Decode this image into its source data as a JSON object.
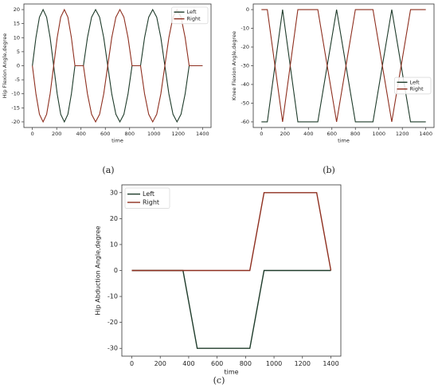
{
  "chart_data": [
    {
      "type": "line",
      "label": "(a)",
      "xlabel": "time",
      "ylabel": "Hip Flexion Angle,degree",
      "x": [
        0,
        29,
        58,
        88,
        117,
        146,
        175,
        204,
        233,
        263,
        292,
        321,
        350,
        420,
        453,
        487,
        520,
        553,
        587,
        620,
        653,
        687,
        720,
        753,
        787,
        820,
        890,
        923,
        957,
        990,
        1023,
        1057,
        1090,
        1123,
        1157,
        1190,
        1223,
        1257,
        1290,
        1400
      ],
      "series": [
        {
          "name": "Left",
          "color": "#1e3b2a",
          "values": [
            0,
            10,
            17.3,
            20,
            17.3,
            10,
            0,
            -10,
            -17.3,
            -20,
            -17.3,
            -10,
            0,
            0,
            10,
            17.3,
            20,
            17.3,
            10,
            0,
            -10,
            -17.3,
            -20,
            -17.3,
            -10,
            0,
            0,
            10,
            17.3,
            20,
            17.3,
            10,
            0,
            -10,
            -17.3,
            -20,
            -17.3,
            -10,
            0,
            0
          ]
        },
        {
          "name": "Right",
          "color": "#8e2f1f",
          "values": [
            0,
            -10,
            -17.3,
            -20,
            -17.3,
            -10,
            0,
            10,
            17.3,
            20,
            17.3,
            10,
            0,
            0,
            -10,
            -17.3,
            -20,
            -17.3,
            -10,
            0,
            10,
            17.3,
            20,
            17.3,
            10,
            0,
            0,
            -10,
            -17.3,
            -20,
            -17.3,
            -10,
            0,
            10,
            17.3,
            20,
            17.3,
            10,
            0,
            0
          ]
        }
      ],
      "xlim": [
        -70,
        1470
      ],
      "xticks": [
        0,
        200,
        400,
        600,
        800,
        1000,
        1200,
        1400
      ],
      "ylim": [
        -22,
        22
      ],
      "yticks": [
        -20,
        -15,
        -10,
        -5,
        0,
        5,
        10,
        15,
        20
      ],
      "legend": "upper right"
    },
    {
      "type": "line",
      "label": "(b)",
      "xlabel": "time",
      "ylabel": "Knee Flexion Angle,degree",
      "x": [
        0,
        50,
        115,
        180,
        245,
        310,
        480,
        560,
        640,
        720,
        800,
        950,
        1030,
        1110,
        1190,
        1270,
        1400
      ],
      "series": [
        {
          "name": "Left",
          "color": "#1e3b2a",
          "values": [
            -60,
            -60,
            -30,
            0,
            -30,
            -60,
            -60,
            -30,
            0,
            -30,
            -60,
            -60,
            -30,
            0,
            -30,
            -60,
            -60
          ]
        },
        {
          "name": "Right",
          "color": "#8e2f1f",
          "values": [
            0,
            0,
            -30,
            -60,
            -30,
            0,
            0,
            -30,
            -60,
            -30,
            0,
            0,
            -30,
            -60,
            -30,
            0,
            0
          ]
        }
      ],
      "xlim": [
        -70,
        1470
      ],
      "xticks": [
        0,
        200,
        400,
        600,
        800,
        1000,
        1200,
        1400
      ],
      "ylim": [
        -63,
        3
      ],
      "yticks": [
        -60,
        -50,
        -40,
        -30,
        -20,
        -10,
        0
      ],
      "legend": "center right"
    },
    {
      "type": "line",
      "label": "(c)",
      "xlabel": "time",
      "ylabel": "Hip Abduction Angle,degree",
      "x": [
        0,
        360,
        460,
        830,
        930,
        1300,
        1400
      ],
      "series": [
        {
          "name": "Left",
          "color": "#1e3b2a",
          "values": [
            0,
            0,
            -30,
            -30,
            0,
            0,
            0
          ]
        },
        {
          "name": "Right",
          "color": "#8e2f1f",
          "values": [
            0,
            0,
            0,
            0,
            30,
            30,
            0
          ]
        }
      ],
      "xlim": [
        -70,
        1470
      ],
      "xticks": [
        0,
        200,
        400,
        600,
        800,
        1000,
        1200,
        1400
      ],
      "ylim": [
        -33,
        33
      ],
      "yticks": [
        -30,
        -20,
        -10,
        0,
        10,
        20,
        30
      ],
      "legend": "upper left"
    }
  ]
}
